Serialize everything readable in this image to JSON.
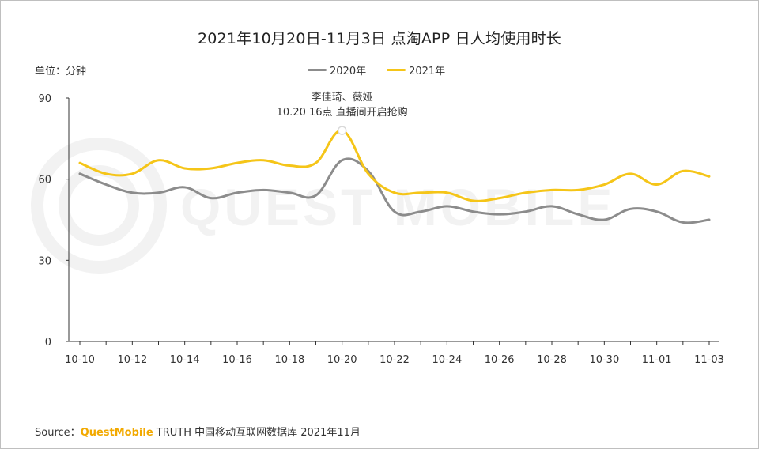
{
  "title": "2021年10月20日-11月3日 点淘APP 日人均使用时长",
  "unit_label": "单位：分钟",
  "watermark": "QUEST MOBILE",
  "source": {
    "prefix": "Source：",
    "brand": "QuestMobile",
    "rest": " TRUTH 中国移动互联网数据库 2021年11月"
  },
  "colors": {
    "series_2020": "#8c8c8c",
    "series_2021": "#f5c518",
    "axis": "#333333"
  },
  "chart_data": {
    "type": "line",
    "title": "2021年10月20日-11月3日 点淘APP 日人均使用时长",
    "xlabel": "",
    "ylabel": "",
    "ylim": [
      0,
      90
    ],
    "yticks": [
      0,
      30,
      60,
      90
    ],
    "grid": false,
    "legend_position": "top-center",
    "categories": [
      "10-10",
      "10-11",
      "10-12",
      "10-13",
      "10-14",
      "10-15",
      "10-16",
      "10-17",
      "10-18",
      "10-19",
      "10-20",
      "10-21",
      "10-22",
      "10-23",
      "10-24",
      "10-25",
      "10-26",
      "10-27",
      "10-28",
      "10-29",
      "10-30",
      "10-31",
      "11-01",
      "11-02",
      "11-03"
    ],
    "xtick_labels": [
      "10-10",
      "10-12",
      "10-14",
      "10-16",
      "10-18",
      "10-20",
      "10-22",
      "10-24",
      "10-26",
      "10-28",
      "10-30",
      "11-01",
      "11-03"
    ],
    "series": [
      {
        "name": "2020年",
        "color": "#8c8c8c",
        "values": [
          62,
          58,
          55,
          55,
          57,
          53,
          55,
          56,
          55,
          54,
          67,
          63,
          48,
          48,
          50,
          48,
          47,
          48,
          50,
          47,
          45,
          49,
          48,
          44,
          45
        ]
      },
      {
        "name": "2021年",
        "color": "#f5c518",
        "values": [
          66,
          62,
          62,
          67,
          64,
          64,
          66,
          67,
          65,
          66,
          78,
          62,
          55,
          55,
          55,
          52,
          53,
          55,
          56,
          56,
          58,
          62,
          58,
          63,
          61
        ]
      }
    ],
    "annotation": {
      "series": "2021年",
      "category": "10-20",
      "lines": [
        "李佳琦、薇娅",
        "10.20 16点 直播间开启抢购"
      ]
    }
  }
}
